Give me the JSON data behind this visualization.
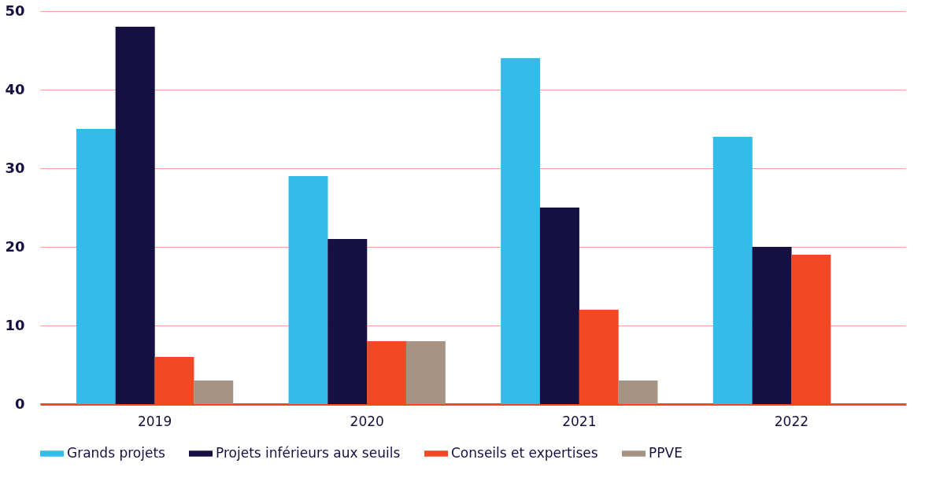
{
  "chart_data": {
    "type": "bar",
    "categories": [
      "2019",
      "2020",
      "2021",
      "2022"
    ],
    "series": [
      {
        "name": "Grands projets",
        "color": "#33bbea",
        "values": [
          35,
          29,
          44,
          34
        ]
      },
      {
        "name": "Projets inférieurs aux seuils",
        "color": "#160f41",
        "values": [
          48,
          21,
          25,
          20
        ]
      },
      {
        "name": "Conseils et expertises",
        "color": "#f04923",
        "values": [
          6,
          8,
          12,
          19
        ]
      },
      {
        "name": "PPVE",
        "color": "#a69383",
        "values": [
          3,
          8,
          3,
          null
        ]
      }
    ],
    "ylim": [
      0,
      50
    ],
    "yticks": [
      0,
      10,
      20,
      30,
      40,
      50
    ],
    "grid": "y",
    "legend": "bottom"
  }
}
